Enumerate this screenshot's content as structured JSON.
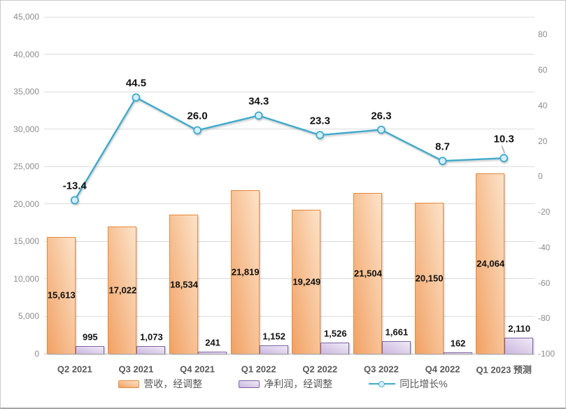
{
  "chart_data": {
    "type": "combo",
    "title": "",
    "categories": [
      "Q2 2021",
      "Q3 2021",
      "Q4 2021",
      "Q1 2022",
      "Q2 2022",
      "Q3 2022",
      "Q4 2022",
      "Q1 2023 预测"
    ],
    "series": [
      {
        "name": "营收，经调整",
        "type": "bar",
        "axis": "left",
        "values": [
          15613,
          17022,
          18534,
          21819,
          19249,
          21504,
          20150,
          24064
        ],
        "labels": [
          "15,613",
          "17,022",
          "18,534",
          "21,819",
          "19,249",
          "21,504",
          "20,150",
          "24,064"
        ],
        "fill_light": "#FCE3C9",
        "fill_dark": "#F2A164",
        "border": "#E8873B"
      },
      {
        "name": "净利润，经调整",
        "type": "bar",
        "axis": "left",
        "values": [
          995,
          1073,
          241,
          1152,
          1526,
          1661,
          162,
          2110
        ],
        "labels": [
          "995",
          "1,073",
          "241",
          "1,152",
          "1,526",
          "1,661",
          "162",
          "2,110"
        ],
        "fill_light": "#F0EAF7",
        "fill_dark": "#CBB7DF",
        "border": "#7E62A2"
      },
      {
        "name": "同比增长%",
        "type": "line",
        "axis": "right",
        "values": [
          -13.4,
          44.5,
          26.0,
          34.3,
          23.3,
          26.3,
          8.7,
          10.3
        ],
        "labels": [
          "-13.4",
          "44.5",
          "26.0",
          "34.3",
          "23.3",
          "26.3",
          "8.7",
          "10.3"
        ],
        "color": "#3FA9CB",
        "marker_fill": "#D4EFF9"
      }
    ],
    "left_axis": {
      "min": 0,
      "max": 45000,
      "step": 5000,
      "tick_labels": [
        "45,000",
        "40,000",
        "35,000",
        "30,000",
        "25,000",
        "20,000",
        "15,000",
        "10,000",
        "5,000",
        "0"
      ]
    },
    "right_axis": {
      "min": -100,
      "max": 90,
      "tick_values": [
        80,
        60,
        40,
        20,
        0,
        -20,
        -40,
        -60,
        -80,
        -100
      ],
      "tick_labels": [
        "80",
        "60",
        "40",
        "20",
        "0",
        "-20",
        "-40",
        "-60",
        "-80",
        "-100"
      ]
    },
    "grid": "horizontal",
    "legend_position": "bottom",
    "gridline_color": "#dcdcdc",
    "axis_line_color": "#bfbfbf"
  }
}
